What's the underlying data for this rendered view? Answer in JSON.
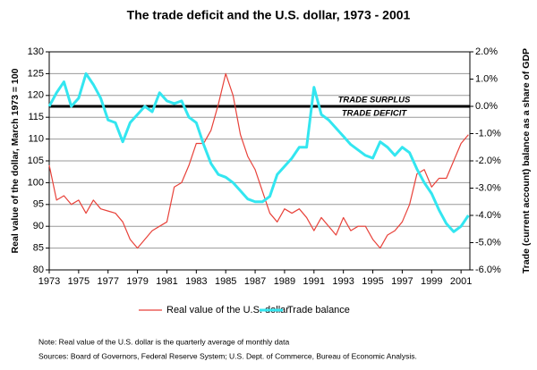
{
  "chart_data": {
    "type": "line",
    "title": "The trade deficit and the U.S. dollar, 1973 - 2001",
    "y_label": "Real value of the dollar, March 1973 = 100",
    "y2_label": "Trade (current account) balance as a share of GDP",
    "x": [
      1973,
      1973.5,
      1974,
      1974.5,
      1975,
      1975.5,
      1976,
      1976.5,
      1977,
      1977.5,
      1978,
      1978.5,
      1979,
      1979.5,
      1980,
      1980.5,
      1981,
      1981.5,
      1982,
      1982.5,
      1983,
      1983.5,
      1984,
      1984.5,
      1985,
      1985.5,
      1986,
      1986.5,
      1987,
      1987.5,
      1988,
      1988.5,
      1989,
      1989.5,
      1990,
      1990.5,
      1991,
      1991.5,
      1992,
      1992.5,
      1993,
      1993.5,
      1994,
      1994.5,
      1995,
      1995.5,
      1996,
      1996.5,
      1997,
      1997.5,
      1998,
      1998.5,
      1999,
      1999.5,
      2000,
      2000.5,
      2001,
      2001.5
    ],
    "series": [
      {
        "name": "Real value of the U.S. dollar",
        "color": "#e8423a",
        "axis": "y",
        "values": [
          104,
          96,
          97,
          95,
          96,
          93,
          96,
          94,
          93.5,
          93,
          91,
          87,
          85,
          87,
          89,
          90,
          91,
          99,
          100,
          104,
          109,
          109,
          112,
          118,
          125,
          120,
          111,
          106,
          103,
          98,
          93,
          91,
          94,
          93,
          94,
          92,
          89,
          92,
          90,
          88,
          92,
          89,
          90,
          90,
          87,
          85,
          88,
          89,
          91,
          95,
          102,
          103,
          99,
          101,
          101,
          105,
          109,
          111
        ]
      },
      {
        "name": "Trade balance",
        "color": "#33e6f0",
        "axis": "y2",
        "values": [
          0,
          0.5,
          0.9,
          0,
          0.3,
          1.2,
          0.8,
          0.3,
          -0.5,
          -0.6,
          -1.3,
          -0.6,
          -0.3,
          0,
          -0.2,
          0.5,
          0.2,
          0.1,
          0.2,
          -0.4,
          -0.6,
          -1.4,
          -2.1,
          -2.5,
          -2.6,
          -2.8,
          -3.1,
          -3.4,
          -3.5,
          -3.5,
          -3.3,
          -2.5,
          -2.2,
          -1.9,
          -1.5,
          -1.5,
          0.7,
          -0.3,
          -0.5,
          -0.8,
          -1.1,
          -1.4,
          -1.6,
          -1.8,
          -1.9,
          -1.3,
          -1.5,
          -1.8,
          -1.5,
          -1.7,
          -2.3,
          -2.8,
          -3.2,
          -3.8,
          -4.3,
          -4.6,
          -4.4,
          -4.0
        ]
      }
    ],
    "xlim": [
      1973,
      2001.6
    ],
    "xticks": [
      1973,
      1975,
      1977,
      1979,
      1981,
      1983,
      1985,
      1987,
      1989,
      1991,
      1993,
      1995,
      1997,
      1999,
      2001
    ],
    "ylim": [
      80,
      130
    ],
    "yticks": [
      80,
      85,
      90,
      95,
      100,
      105,
      110,
      115,
      120,
      125,
      130
    ],
    "y2lim": [
      -6,
      2
    ],
    "y2ticks": [
      {
        "value": -6,
        "label": "-6.0%"
      },
      {
        "value": -5,
        "label": "-5.0%"
      },
      {
        "value": -4,
        "label": "-4.0%"
      },
      {
        "value": -3,
        "label": "-3.0%"
      },
      {
        "value": -2,
        "label": "-2.0%"
      },
      {
        "value": -1,
        "label": "-1.0%"
      },
      {
        "value": 0,
        "label": "0.0%"
      },
      {
        "value": 1,
        "label": "1.0%"
      },
      {
        "value": 2,
        "label": "2.0%"
      }
    ],
    "grid": true,
    "reference_line": {
      "value": 0,
      "axis": "y2",
      "label_above": "TRADE SURPLUS",
      "label_below": "TRADE DEFICIT"
    },
    "notes": [
      "Note:  Real value of the U.S. dollar is the quarterly average of monthly data",
      "Sources:  Board of Governors, Federal Reserve System; U.S. Dept. of Commerce, Bureau of Economic Analysis."
    ]
  }
}
